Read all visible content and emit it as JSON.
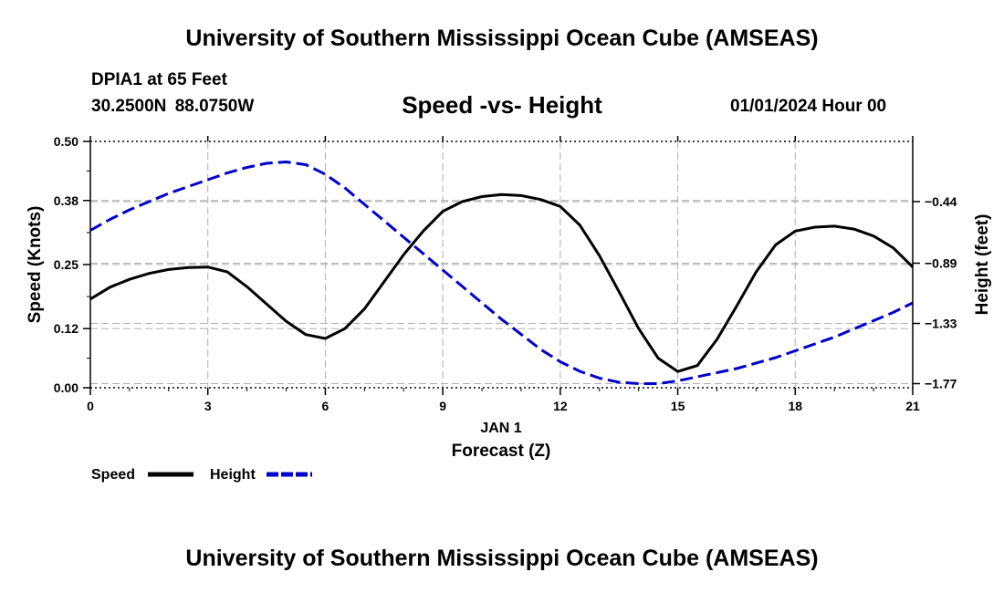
{
  "header": {
    "title": "University of Southern Mississippi Ocean Cube (AMSEAS)",
    "station": "DPIA1 at 65 Feet",
    "latitude": "30.2500N",
    "longitude": "88.0750W",
    "subtitle": "Speed -vs- Height",
    "datetime": "01/01/2024 Hour 00"
  },
  "footer": {
    "title": "University of Southern Mississippi Ocean Cube (AMSEAS)"
  },
  "legend": {
    "speed_label": "Speed",
    "height_label": "Height"
  },
  "colors": {
    "speed": "#000000",
    "height": "#0000cc",
    "grid": "#b0b0b0"
  },
  "chart_data": {
    "type": "line",
    "title": "Speed -vs- Height",
    "xlabel": "Forecast (Z)",
    "xsublabel": "JAN 1",
    "xlim": [
      0,
      21
    ],
    "xticks": [
      0,
      3,
      6,
      9,
      12,
      15,
      18,
      21
    ],
    "ylabel_left": "Speed (Knots)",
    "ylim_left": [
      0,
      0.5
    ],
    "yticks_left": [
      "0.00",
      "0.12",
      "0.25",
      "0.38",
      "0.50"
    ],
    "ylabel_right": "Height (feet)",
    "ylim_right": [
      -1.8,
      0.0
    ],
    "yticks_right": [
      "-0.44",
      "-0.89",
      "-1.33",
      "-1.77"
    ],
    "grid": true,
    "legend_position": "bottom-left",
    "series": [
      {
        "name": "Speed",
        "axis": "left",
        "style": "solid",
        "x": [
          0,
          0.5,
          1,
          1.5,
          2,
          2.5,
          3,
          3.5,
          4,
          4.5,
          5,
          5.5,
          6,
          6.5,
          7,
          7.5,
          8,
          8.5,
          9,
          9.5,
          10,
          10.5,
          11,
          11.5,
          12,
          12.5,
          13,
          13.5,
          14,
          14.5,
          15,
          15.5,
          16,
          16.5,
          17,
          17.5,
          18,
          18.5,
          19,
          19.5,
          20,
          20.5,
          21
        ],
        "values": [
          0.18,
          0.204,
          0.22,
          0.232,
          0.24,
          0.244,
          0.245,
          0.235,
          0.205,
          0.17,
          0.135,
          0.108,
          0.1,
          0.12,
          0.16,
          0.215,
          0.27,
          0.318,
          0.358,
          0.378,
          0.388,
          0.392,
          0.39,
          0.382,
          0.368,
          0.33,
          0.268,
          0.195,
          0.12,
          0.06,
          0.033,
          0.045,
          0.098,
          0.165,
          0.235,
          0.29,
          0.318,
          0.326,
          0.328,
          0.322,
          0.308,
          0.284,
          0.245
        ]
      },
      {
        "name": "Height",
        "axis": "right",
        "style": "dashed",
        "x": [
          0,
          0.5,
          1,
          1.5,
          2,
          2.5,
          3,
          3.5,
          4,
          4.5,
          5,
          5.5,
          6,
          6.5,
          7,
          7.5,
          8,
          8.5,
          9,
          9.5,
          10,
          10.5,
          11,
          11.5,
          12,
          12.5,
          13,
          13.5,
          14,
          14.5,
          15,
          15.5,
          16,
          16.5,
          17,
          17.5,
          18,
          18.5,
          19,
          19.5,
          20,
          20.5,
          21
        ],
        "values": [
          -0.65,
          -0.57,
          -0.5,
          -0.44,
          -0.38,
          -0.33,
          -0.28,
          -0.23,
          -0.19,
          -0.16,
          -0.15,
          -0.17,
          -0.24,
          -0.34,
          -0.46,
          -0.58,
          -0.7,
          -0.82,
          -0.94,
          -1.06,
          -1.18,
          -1.3,
          -1.41,
          -1.52,
          -1.61,
          -1.68,
          -1.73,
          -1.76,
          -1.77,
          -1.77,
          -1.75,
          -1.72,
          -1.69,
          -1.66,
          -1.62,
          -1.58,
          -1.53,
          -1.48,
          -1.43,
          -1.37,
          -1.31,
          -1.25,
          -1.18
        ]
      }
    ]
  }
}
